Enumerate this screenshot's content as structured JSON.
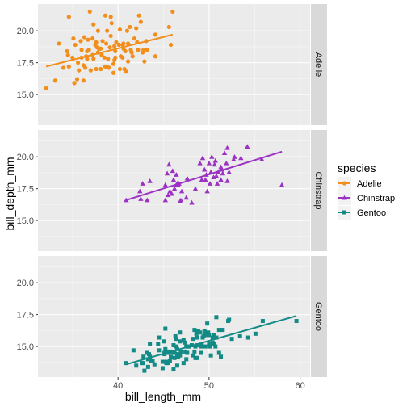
{
  "chart_data": {
    "type": "scatter",
    "facet": "species",
    "xlabel": "bill_length_mm",
    "ylabel": "bill_depth_mm",
    "xlim": [
      31.2,
      61.1
    ],
    "ylim": [
      12.6,
      22.1
    ],
    "x_ticks": [
      40,
      50,
      60
    ],
    "x_tick_labels": [
      "40",
      "50",
      "60"
    ],
    "y_ticks": [
      15.0,
      17.5,
      20.0
    ],
    "y_tick_labels": [
      "15.0",
      "17.5",
      "20.0"
    ],
    "grid": true,
    "legend": {
      "title": "species",
      "position": "right",
      "entries": [
        "Adelie",
        "Chinstrap",
        "Gentoo"
      ]
    },
    "series": [
      {
        "name": "Adelie",
        "color": "#F28E1C",
        "marker": "circle",
        "fit": {
          "x": [
            32.1,
            46.0
          ],
          "y": [
            17.2,
            19.7
          ]
        },
        "points": [
          [
            32.1,
            15.5
          ],
          [
            33.1,
            16.1
          ],
          [
            33.5,
            19.0
          ],
          [
            34.0,
            17.1
          ],
          [
            34.4,
            18.4
          ],
          [
            34.5,
            18.1
          ],
          [
            34.6,
            21.1
          ],
          [
            34.6,
            17.2
          ],
          [
            35.0,
            17.9
          ],
          [
            35.1,
            19.4
          ],
          [
            35.2,
            15.9
          ],
          [
            35.3,
            18.9
          ],
          [
            35.5,
            16.2
          ],
          [
            35.6,
            17.5
          ],
          [
            35.7,
            16.9
          ],
          [
            35.9,
            19.2
          ],
          [
            36.0,
            18.5
          ],
          [
            36.0,
            17.9
          ],
          [
            36.2,
            17.3
          ],
          [
            36.2,
            16.1
          ],
          [
            36.3,
            19.5
          ],
          [
            36.4,
            17.1
          ],
          [
            36.5,
            18.0
          ],
          [
            36.6,
            17.8
          ],
          [
            36.6,
            18.4
          ],
          [
            36.7,
            19.3
          ],
          [
            36.8,
            18.5
          ],
          [
            36.9,
            21.5
          ],
          [
            37.0,
            16.9
          ],
          [
            37.2,
            18.1
          ],
          [
            37.2,
            19.4
          ],
          [
            37.3,
            20.5
          ],
          [
            37.3,
            17.8
          ],
          [
            37.5,
            18.9
          ],
          [
            37.6,
            19.1
          ],
          [
            37.6,
            17.0
          ],
          [
            37.7,
            18.7
          ],
          [
            37.8,
            18.3
          ],
          [
            37.8,
            20.0
          ],
          [
            37.9,
            18.6
          ],
          [
            38.1,
            18.6
          ],
          [
            38.1,
            17.0
          ],
          [
            38.2,
            18.1
          ],
          [
            38.3,
            19.2
          ],
          [
            38.5,
            17.9
          ],
          [
            38.6,
            21.2
          ],
          [
            38.6,
            17.2
          ],
          [
            38.7,
            19.0
          ],
          [
            38.8,
            17.2
          ],
          [
            38.8,
            20.0
          ],
          [
            38.9,
            17.8
          ],
          [
            39.0,
            17.1
          ],
          [
            39.1,
            18.7
          ],
          [
            39.2,
            19.6
          ],
          [
            39.2,
            21.1
          ],
          [
            39.3,
            20.6
          ],
          [
            39.5,
            17.4
          ],
          [
            39.5,
            16.7
          ],
          [
            39.6,
            18.8
          ],
          [
            39.6,
            17.7
          ],
          [
            39.7,
            18.4
          ],
          [
            39.7,
            17.9
          ],
          [
            39.8,
            19.1
          ],
          [
            40.1,
            18.9
          ],
          [
            40.2,
            17.0
          ],
          [
            40.2,
            20.1
          ],
          [
            40.3,
            18.0
          ],
          [
            40.5,
            17.9
          ],
          [
            40.5,
            18.9
          ],
          [
            40.6,
            18.6
          ],
          [
            40.6,
            19.0
          ],
          [
            40.7,
            17.0
          ],
          [
            40.8,
            18.4
          ],
          [
            40.9,
            16.8
          ],
          [
            41.0,
            20.0
          ],
          [
            41.1,
            17.6
          ],
          [
            41.1,
            19.0
          ],
          [
            41.3,
            20.3
          ],
          [
            41.4,
            18.5
          ],
          [
            41.5,
            18.3
          ],
          [
            41.6,
            18.0
          ],
          [
            41.8,
            19.4
          ],
          [
            42.0,
            20.2
          ],
          [
            42.1,
            19.1
          ],
          [
            42.2,
            18.5
          ],
          [
            42.3,
            21.2
          ],
          [
            42.5,
            20.7
          ],
          [
            42.7,
            18.3
          ],
          [
            42.8,
            18.5
          ],
          [
            42.9,
            17.6
          ],
          [
            43.1,
            19.2
          ],
          [
            43.2,
            18.5
          ],
          [
            44.1,
            19.7
          ],
          [
            44.1,
            18.0
          ],
          [
            45.6,
            20.3
          ],
          [
            45.8,
            18.9
          ],
          [
            46.0,
            21.5
          ]
        ]
      },
      {
        "name": "Chinstrap",
        "color": "#9B32C4",
        "marker": "triangle",
        "fit": {
          "x": [
            40.9,
            58.0
          ],
          "y": [
            16.6,
            20.4
          ]
        },
        "points": [
          [
            40.9,
            16.6
          ],
          [
            42.4,
            17.3
          ],
          [
            42.5,
            16.7
          ],
          [
            42.7,
            17.9
          ],
          [
            43.2,
            16.6
          ],
          [
            43.5,
            18.1
          ],
          [
            45.2,
            17.8
          ],
          [
            45.2,
            16.6
          ],
          [
            45.4,
            18.7
          ],
          [
            45.5,
            17.0
          ],
          [
            45.6,
            19.4
          ],
          [
            45.7,
            17.3
          ],
          [
            45.9,
            17.1
          ],
          [
            46.0,
            18.9
          ],
          [
            46.1,
            18.2
          ],
          [
            46.2,
            17.5
          ],
          [
            46.4,
            18.6
          ],
          [
            46.4,
            17.8
          ],
          [
            46.5,
            17.9
          ],
          [
            46.6,
            17.8
          ],
          [
            46.7,
            17.9
          ],
          [
            46.8,
            16.5
          ],
          [
            46.9,
            16.6
          ],
          [
            47.0,
            17.3
          ],
          [
            47.5,
            16.8
          ],
          [
            47.6,
            18.3
          ],
          [
            48.1,
            16.4
          ],
          [
            48.5,
            17.5
          ],
          [
            49.0,
            19.5
          ],
          [
            49.2,
            18.2
          ],
          [
            49.3,
            19.9
          ],
          [
            49.5,
            19.0
          ],
          [
            49.6,
            18.2
          ],
          [
            49.7,
            18.6
          ],
          [
            49.8,
            17.3
          ],
          [
            50.0,
            19.5
          ],
          [
            50.1,
            17.9
          ],
          [
            50.2,
            18.8
          ],
          [
            50.3,
            20.0
          ],
          [
            50.5,
            18.4
          ],
          [
            50.6,
            19.4
          ],
          [
            50.7,
            19.7
          ],
          [
            50.8,
            18.5
          ],
          [
            50.9,
            17.9
          ],
          [
            51.0,
            18.8
          ],
          [
            51.3,
            19.2
          ],
          [
            51.3,
            18.2
          ],
          [
            51.4,
            19.0
          ],
          [
            51.5,
            18.7
          ],
          [
            51.7,
            20.3
          ],
          [
            51.9,
            19.5
          ],
          [
            52.0,
            18.1
          ],
          [
            52.0,
            20.7
          ],
          [
            52.2,
            18.8
          ],
          [
            52.7,
            19.8
          ],
          [
            52.8,
            20.0
          ],
          [
            53.5,
            19.9
          ],
          [
            54.2,
            20.8
          ],
          [
            55.8,
            19.8
          ],
          [
            58.0,
            17.8
          ]
        ]
      },
      {
        "name": "Gentoo",
        "color": "#138A86",
        "marker": "square",
        "fit": {
          "x": [
            40.9,
            59.6
          ],
          "y": [
            13.6,
            17.4
          ]
        },
        "points": [
          [
            40.9,
            13.7
          ],
          [
            41.7,
            14.7
          ],
          [
            42.0,
            13.5
          ],
          [
            42.6,
            13.7
          ],
          [
            42.7,
            13.7
          ],
          [
            42.8,
            14.2
          ],
          [
            42.9,
            13.1
          ],
          [
            43.2,
            14.5
          ],
          [
            43.3,
            13.4
          ],
          [
            43.3,
            14.0
          ],
          [
            43.4,
            14.4
          ],
          [
            43.5,
            14.2
          ],
          [
            43.5,
            15.2
          ],
          [
            43.6,
            13.9
          ],
          [
            43.8,
            13.9
          ],
          [
            44.0,
            13.6
          ],
          [
            44.4,
            15.2
          ],
          [
            44.5,
            14.7
          ],
          [
            44.5,
            15.7
          ],
          [
            44.9,
            13.3
          ],
          [
            44.9,
            13.8
          ],
          [
            45.0,
            15.4
          ],
          [
            45.1,
            14.5
          ],
          [
            45.1,
            14.4
          ],
          [
            45.2,
            14.8
          ],
          [
            45.2,
            13.8
          ],
          [
            45.2,
            16.4
          ],
          [
            45.3,
            13.7
          ],
          [
            45.3,
            13.8
          ],
          [
            45.4,
            14.6
          ],
          [
            45.5,
            14.5
          ],
          [
            45.5,
            13.7
          ],
          [
            45.7,
            13.9
          ],
          [
            45.8,
            14.6
          ],
          [
            45.8,
            14.2
          ],
          [
            46.1,
            13.2
          ],
          [
            46.1,
            15.1
          ],
          [
            46.2,
            14.5
          ],
          [
            46.2,
            14.1
          ],
          [
            46.3,
            15.8
          ],
          [
            46.4,
            15.6
          ],
          [
            46.4,
            15.0
          ],
          [
            46.5,
            13.5
          ],
          [
            46.5,
            14.4
          ],
          [
            46.5,
            14.8
          ],
          [
            46.6,
            14.2
          ],
          [
            46.8,
            14.3
          ],
          [
            46.8,
            15.4
          ],
          [
            46.8,
            16.1
          ],
          [
            46.9,
            14.6
          ],
          [
            47.2,
            13.7
          ],
          [
            47.2,
            15.5
          ],
          [
            47.3,
            15.3
          ],
          [
            47.4,
            14.6
          ],
          [
            47.5,
            14.0
          ],
          [
            47.5,
            15.0
          ],
          [
            47.6,
            14.5
          ],
          [
            47.7,
            15.0
          ],
          [
            47.8,
            15.0
          ],
          [
            48.1,
            15.1
          ],
          [
            48.2,
            14.3
          ],
          [
            48.2,
            15.6
          ],
          [
            48.4,
            14.6
          ],
          [
            48.4,
            16.3
          ],
          [
            48.5,
            14.1
          ],
          [
            48.5,
            15.0
          ],
          [
            48.6,
            16.0
          ],
          [
            48.7,
            14.1
          ],
          [
            48.7,
            15.1
          ],
          [
            48.7,
            15.7
          ],
          [
            48.8,
            16.2
          ],
          [
            49.0,
            16.1
          ],
          [
            49.1,
            14.5
          ],
          [
            49.1,
            15.0
          ],
          [
            49.2,
            15.2
          ],
          [
            49.3,
            15.7
          ],
          [
            49.4,
            15.8
          ],
          [
            49.5,
            16.1
          ],
          [
            49.5,
            16.2
          ],
          [
            49.6,
            15.0
          ],
          [
            49.6,
            16.0
          ],
          [
            49.8,
            15.9
          ],
          [
            49.8,
            16.8
          ],
          [
            49.9,
            16.1
          ],
          [
            50.0,
            15.2
          ],
          [
            50.0,
            15.9
          ],
          [
            50.1,
            15.0
          ],
          [
            50.2,
            14.3
          ],
          [
            50.4,
            15.3
          ],
          [
            50.4,
            15.7
          ],
          [
            50.5,
            15.2
          ],
          [
            50.5,
            15.9
          ],
          [
            50.7,
            15.0
          ],
          [
            50.8,
            15.7
          ],
          [
            50.8,
            17.3
          ],
          [
            51.1,
            16.3
          ],
          [
            51.1,
            14.5
          ],
          [
            51.3,
            14.2
          ],
          [
            51.5,
            16.3
          ],
          [
            52.1,
            17.0
          ],
          [
            52.2,
            17.1
          ],
          [
            52.5,
            15.6
          ],
          [
            53.4,
            15.8
          ],
          [
            54.3,
            15.7
          ],
          [
            55.1,
            16.0
          ],
          [
            55.9,
            17.0
          ],
          [
            59.6,
            17.0
          ]
        ]
      }
    ]
  }
}
